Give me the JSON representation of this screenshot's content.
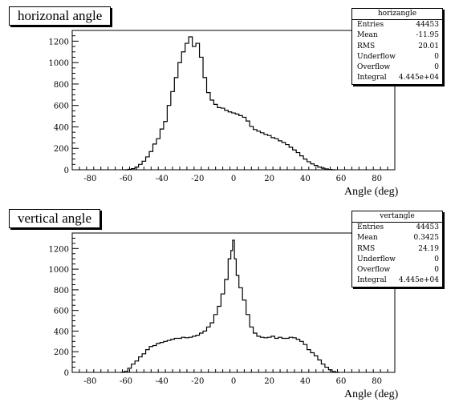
{
  "chart_data": [
    {
      "type": "histogram",
      "title": "horizonal angle",
      "xlabel": "Angle (deg)",
      "ylabel": "",
      "xlim": [
        -90,
        90
      ],
      "ylim": [
        0,
        1300
      ],
      "xticks": [
        -80,
        -60,
        -40,
        -20,
        0,
        20,
        40,
        60,
        80
      ],
      "yticks": [
        0,
        200,
        400,
        600,
        800,
        1000,
        1200
      ],
      "stats": {
        "name": "horizangle",
        "rows": [
          {
            "label": "Entries",
            "value": "44453"
          },
          {
            "label": "Mean",
            "value": "-11.95"
          },
          {
            "label": "RMS",
            "value": "20.01"
          },
          {
            "label": "Underflow",
            "value": "0"
          },
          {
            "label": "Overflow",
            "value": "0"
          },
          {
            "label": "Integral",
            "value": "4.445e+04"
          }
        ]
      },
      "x": [
        -60,
        -58,
        -56,
        -54,
        -52,
        -50,
        -48,
        -46,
        -44,
        -42,
        -40,
        -38,
        -36,
        -34,
        -32,
        -30,
        -28,
        -26,
        -24,
        -22,
        -20,
        -18,
        -16,
        -14,
        -12,
        -10,
        -8,
        -6,
        -4,
        -2,
        0,
        2,
        4,
        6,
        8,
        10,
        12,
        14,
        16,
        18,
        20,
        22,
        24,
        26,
        28,
        30,
        32,
        34,
        36,
        38,
        40,
        42,
        44,
        46,
        48,
        50,
        52,
        54,
        56
      ],
      "values": [
        0,
        4,
        10,
        25,
        50,
        80,
        120,
        170,
        240,
        290,
        380,
        450,
        600,
        730,
        860,
        1000,
        1100,
        1180,
        1240,
        1150,
        1180,
        1050,
        860,
        720,
        650,
        610,
        580,
        575,
        555,
        540,
        530,
        520,
        505,
        490,
        455,
        405,
        375,
        360,
        345,
        330,
        320,
        300,
        290,
        270,
        255,
        235,
        210,
        185,
        160,
        130,
        100,
        75,
        55,
        40,
        25,
        15,
        8,
        3,
        0
      ]
    },
    {
      "type": "histogram",
      "title": "vertical angle",
      "xlabel": "Angle (deg)",
      "ylabel": "",
      "xlim": [
        -90,
        90
      ],
      "ylim": [
        0,
        1350
      ],
      "xticks": [
        -80,
        -60,
        -40,
        -20,
        0,
        20,
        40,
        60,
        80
      ],
      "yticks": [
        0,
        200,
        400,
        600,
        800,
        1000,
        1200
      ],
      "stats": {
        "name": "vertangle",
        "rows": [
          {
            "label": "Entries",
            "value": "44453"
          },
          {
            "label": "Mean",
            "value": "0.3425"
          },
          {
            "label": "RMS",
            "value": "24.19"
          },
          {
            "label": "Underflow",
            "value": "0"
          },
          {
            "label": "Overflow",
            "value": "0"
          },
          {
            "label": "Integral",
            "value": "4.445e+04"
          }
        ]
      },
      "x": [
        -62,
        -60,
        -58,
        -56,
        -54,
        -52,
        -50,
        -48,
        -46,
        -44,
        -42,
        -40,
        -38,
        -36,
        -34,
        -32,
        -30,
        -28,
        -26,
        -24,
        -22,
        -20,
        -18,
        -16,
        -14,
        -12,
        -10,
        -8,
        -6,
        -4,
        -2,
        -1,
        0,
        1,
        2,
        4,
        6,
        8,
        10,
        12,
        14,
        16,
        18,
        20,
        22,
        24,
        26,
        28,
        30,
        32,
        34,
        36,
        38,
        40,
        42,
        44,
        46,
        48,
        50,
        52,
        54,
        56,
        58
      ],
      "values": [
        0,
        10,
        40,
        80,
        110,
        150,
        180,
        220,
        250,
        260,
        280,
        290,
        300,
        310,
        320,
        330,
        330,
        340,
        335,
        340,
        350,
        360,
        380,
        400,
        440,
        480,
        560,
        640,
        760,
        900,
        1100,
        1180,
        1280,
        1100,
        940,
        820,
        700,
        560,
        440,
        380,
        350,
        340,
        335,
        340,
        350,
        330,
        340,
        330,
        330,
        340,
        335,
        320,
        300,
        270,
        220,
        190,
        160,
        120,
        80,
        50,
        25,
        8,
        0
      ]
    }
  ]
}
